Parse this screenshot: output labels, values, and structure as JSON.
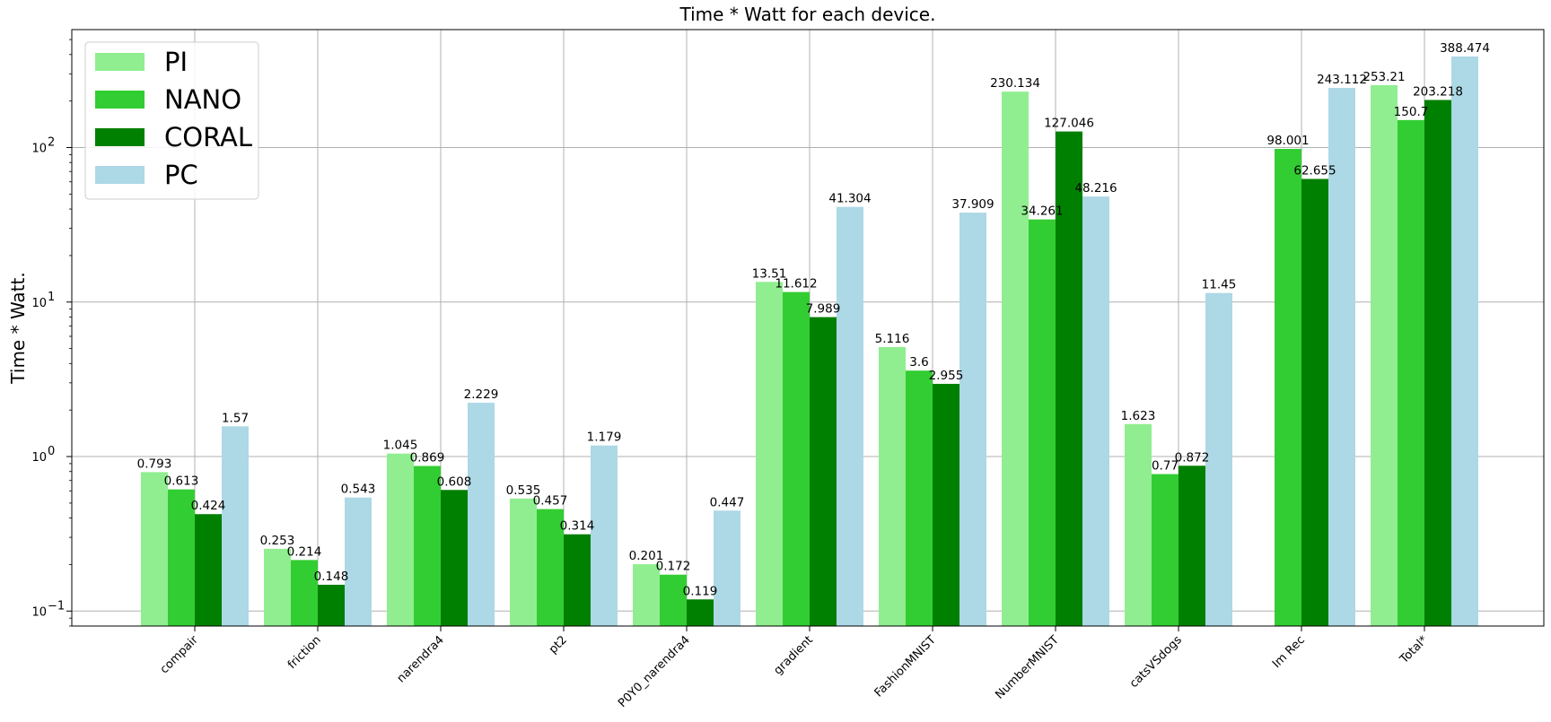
{
  "chart_data": {
    "type": "bar",
    "title": "Time * Watt for each device.",
    "xlabel": "",
    "ylabel": "Time * Watt.",
    "yscale": "log",
    "ylim": [
      0.08,
      580
    ],
    "y_tick_labels": [
      "10",
      "10",
      "10",
      "10"
    ],
    "y_tick_exponents": [
      "−1",
      "0",
      "1",
      "2"
    ],
    "y_tick_values": [
      0.1,
      1,
      10,
      100
    ],
    "grid": true,
    "legend_position": "top-left",
    "categories": [
      "compair",
      "friction",
      "narendra4",
      "pt2",
      "P0Y0_narendra4",
      "gradient",
      "FashionMNIST",
      "NumberMNIST",
      "catsVSdogs",
      "Im Rec",
      "Total*"
    ],
    "series": [
      {
        "name": "PI",
        "color": "#90ee90",
        "values": [
          0.793,
          0.253,
          1.045,
          0.535,
          0.201,
          13.51,
          5.116,
          230.134,
          1.623,
          null,
          253.21
        ],
        "labels": [
          "0.793",
          "0.253",
          "1.045",
          "0.535",
          "0.201",
          "13.51",
          "5.116",
          "230.134",
          "1.623",
          "",
          "253.21"
        ]
      },
      {
        "name": "NANO",
        "color": "#32cd32",
        "values": [
          0.613,
          0.214,
          0.869,
          0.457,
          0.172,
          11.612,
          3.6,
          34.261,
          0.77,
          98.001,
          150.7
        ],
        "labels": [
          "0.613",
          "0.214",
          "0.869",
          "0.457",
          "0.172",
          "11.612",
          "3.6",
          "34.261",
          "0.77",
          "98.001",
          "150.7"
        ]
      },
      {
        "name": "CORAL",
        "color": "#008000",
        "values": [
          0.424,
          0.148,
          0.608,
          0.314,
          0.119,
          7.989,
          2.955,
          127.046,
          0.872,
          62.655,
          203.218
        ],
        "labels": [
          "0.424",
          "0.148",
          "0.608",
          "0.314",
          "0.119",
          "7.989",
          "2.955",
          "127.046",
          "0.872",
          "62.655",
          "203.218"
        ]
      },
      {
        "name": "PC",
        "color": "#add8e6",
        "values": [
          1.57,
          0.543,
          2.229,
          1.179,
          0.447,
          41.304,
          37.909,
          48.216,
          11.45,
          243.112,
          388.474
        ],
        "labels": [
          "1.57",
          "0.543",
          "2.229",
          "1.179",
          "0.447",
          "41.304",
          "37.909",
          "48.216",
          "11.45",
          "243.112",
          "388.474"
        ]
      }
    ]
  }
}
